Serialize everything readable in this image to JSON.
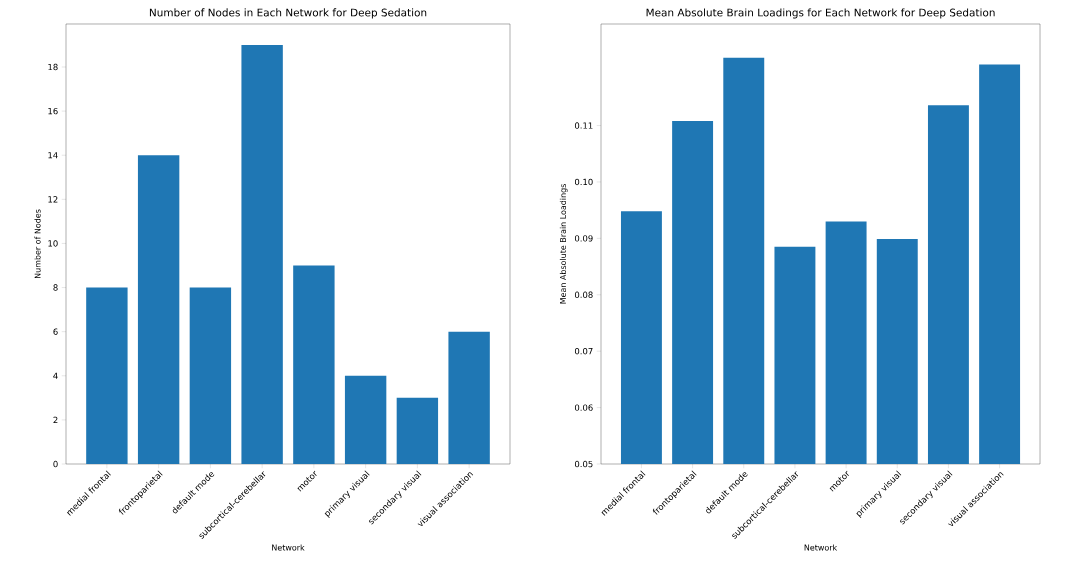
{
  "chart_data": [
    {
      "type": "bar",
      "title": "Number of Nodes in Each Network for Deep Sedation",
      "xlabel": "Network",
      "ylabel": "Number of Nodes",
      "categories": [
        "medial frontal",
        "frontoparietal",
        "default mode",
        "subcortical-cerebellar",
        "motor",
        "primary visual",
        "secondary visual",
        "visual association"
      ],
      "values": [
        8,
        14,
        8,
        19,
        9,
        4,
        3,
        6
      ],
      "color": "#1f77b4",
      "ylim": [
        0,
        19.95
      ],
      "yticks": [
        0,
        2,
        4,
        6,
        8,
        10,
        12,
        14,
        16,
        18
      ]
    },
    {
      "type": "bar",
      "title": "Mean Absolute Brain Loadings for Each Network for Deep Sedation",
      "xlabel": "Network",
      "ylabel": "Mean Absolute Brain Loadings",
      "categories": [
        "medial frontal",
        "frontoparietal",
        "default mode",
        "subcortical-cerebellar",
        "motor",
        "primary visual",
        "secondary visual",
        "visual association"
      ],
      "values": [
        0.0948,
        0.1108,
        0.122,
        0.0885,
        0.093,
        0.0899,
        0.1136,
        0.1208
      ],
      "color": "#1f77b4",
      "ylim": [
        0.05,
        0.128
      ],
      "yticks": [
        0.05,
        0.06,
        0.07,
        0.08,
        0.09,
        {
          "value": 0.1,
          "label": "0.10"
        },
        0.11
      ]
    }
  ]
}
